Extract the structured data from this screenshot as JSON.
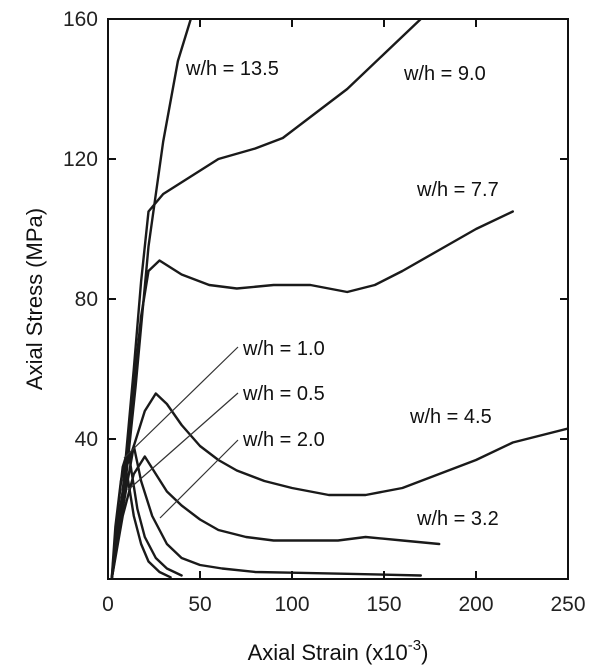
{
  "chart_data": {
    "type": "line",
    "xlabel": "Axial Strain (x10",
    "xlabel_sup": "-3",
    "xlabel_close": ")",
    "ylabel": "Axial Stress (MPa)",
    "xlim": [
      0,
      250
    ],
    "ylim": [
      0,
      160
    ],
    "xticks": [
      0,
      50,
      100,
      150,
      200,
      250
    ],
    "yticks": [
      40,
      80,
      120,
      160
    ],
    "grid": false,
    "legend": "none",
    "series": [
      {
        "name": "w/h = 13.5",
        "points": [
          [
            2,
            0
          ],
          [
            8,
            20
          ],
          [
            15,
            55
          ],
          [
            22,
            95
          ],
          [
            30,
            125
          ],
          [
            38,
            148
          ],
          [
            45,
            160
          ]
        ]
      },
      {
        "name": "w/h = 9.0",
        "points": [
          [
            2,
            0
          ],
          [
            8,
            25
          ],
          [
            14,
            60
          ],
          [
            18,
            85
          ],
          [
            22,
            105
          ],
          [
            30,
            110
          ],
          [
            45,
            115
          ],
          [
            60,
            120
          ],
          [
            80,
            123
          ],
          [
            95,
            126
          ],
          [
            110,
            132
          ],
          [
            130,
            140
          ],
          [
            150,
            150
          ],
          [
            170,
            160
          ]
        ]
      },
      {
        "name": "w/h = 7.7",
        "points": [
          [
            2,
            0
          ],
          [
            8,
            22
          ],
          [
            14,
            55
          ],
          [
            18,
            75
          ],
          [
            22,
            88
          ],
          [
            28,
            91
          ],
          [
            40,
            87
          ],
          [
            55,
            84
          ],
          [
            70,
            83
          ],
          [
            90,
            84
          ],
          [
            110,
            84
          ],
          [
            130,
            82
          ],
          [
            145,
            84
          ],
          [
            160,
            88
          ],
          [
            180,
            94
          ],
          [
            200,
            100
          ],
          [
            220,
            105
          ]
        ]
      },
      {
        "name": "w/h = 4.5",
        "points": [
          [
            2,
            0
          ],
          [
            8,
            20
          ],
          [
            14,
            38
          ],
          [
            20,
            48
          ],
          [
            26,
            53
          ],
          [
            32,
            50
          ],
          [
            40,
            44
          ],
          [
            50,
            38
          ],
          [
            60,
            34
          ],
          [
            70,
            31
          ],
          [
            85,
            28
          ],
          [
            100,
            26
          ],
          [
            120,
            24
          ],
          [
            140,
            24
          ],
          [
            160,
            26
          ],
          [
            180,
            30
          ],
          [
            200,
            34
          ],
          [
            220,
            39
          ],
          [
            250,
            43
          ]
        ]
      },
      {
        "name": "w/h = 3.2",
        "points": [
          [
            2,
            0
          ],
          [
            8,
            18
          ],
          [
            14,
            30
          ],
          [
            20,
            35
          ],
          [
            26,
            30
          ],
          [
            32,
            25
          ],
          [
            40,
            21
          ],
          [
            50,
            17
          ],
          [
            60,
            14
          ],
          [
            75,
            12
          ],
          [
            90,
            11
          ],
          [
            110,
            11
          ],
          [
            125,
            11
          ],
          [
            140,
            12
          ],
          [
            160,
            11
          ],
          [
            180,
            10
          ]
        ]
      },
      {
        "name": "w/h = 2.0",
        "points": [
          [
            2,
            0
          ],
          [
            6,
            18
          ],
          [
            10,
            32
          ],
          [
            14,
            38
          ],
          [
            18,
            28
          ],
          [
            24,
            18
          ],
          [
            32,
            10
          ],
          [
            40,
            6
          ],
          [
            50,
            4
          ],
          [
            62,
            3
          ],
          [
            80,
            2
          ],
          [
            100,
            1.8
          ],
          [
            130,
            1.5
          ],
          [
            170,
            1
          ]
        ]
      },
      {
        "name": "w/h = 1.0",
        "points": [
          [
            2,
            0
          ],
          [
            5,
            18
          ],
          [
            8,
            32
          ],
          [
            11,
            37
          ],
          [
            13,
            30
          ],
          [
            16,
            20
          ],
          [
            20,
            12
          ],
          [
            26,
            6
          ],
          [
            32,
            3
          ],
          [
            40,
            1
          ]
        ]
      },
      {
        "name": "w/h = 0.5",
        "points": [
          [
            2,
            0
          ],
          [
            4,
            15
          ],
          [
            7,
            28
          ],
          [
            9,
            33
          ],
          [
            11,
            28
          ],
          [
            14,
            18
          ],
          [
            18,
            10
          ],
          [
            22,
            5
          ],
          [
            28,
            2
          ],
          [
            34,
            0.5
          ]
        ]
      }
    ],
    "annotations": [
      {
        "text": "w/h = 13.5"
      },
      {
        "text": "w/h = 9.0"
      },
      {
        "text": "w/h = 7.7"
      },
      {
        "text": "w/h = 1.0"
      },
      {
        "text": "w/h = 0.5"
      },
      {
        "text": "w/h = 2.0"
      },
      {
        "text": "w/h = 4.5"
      },
      {
        "text": "w/h = 3.2"
      }
    ]
  }
}
